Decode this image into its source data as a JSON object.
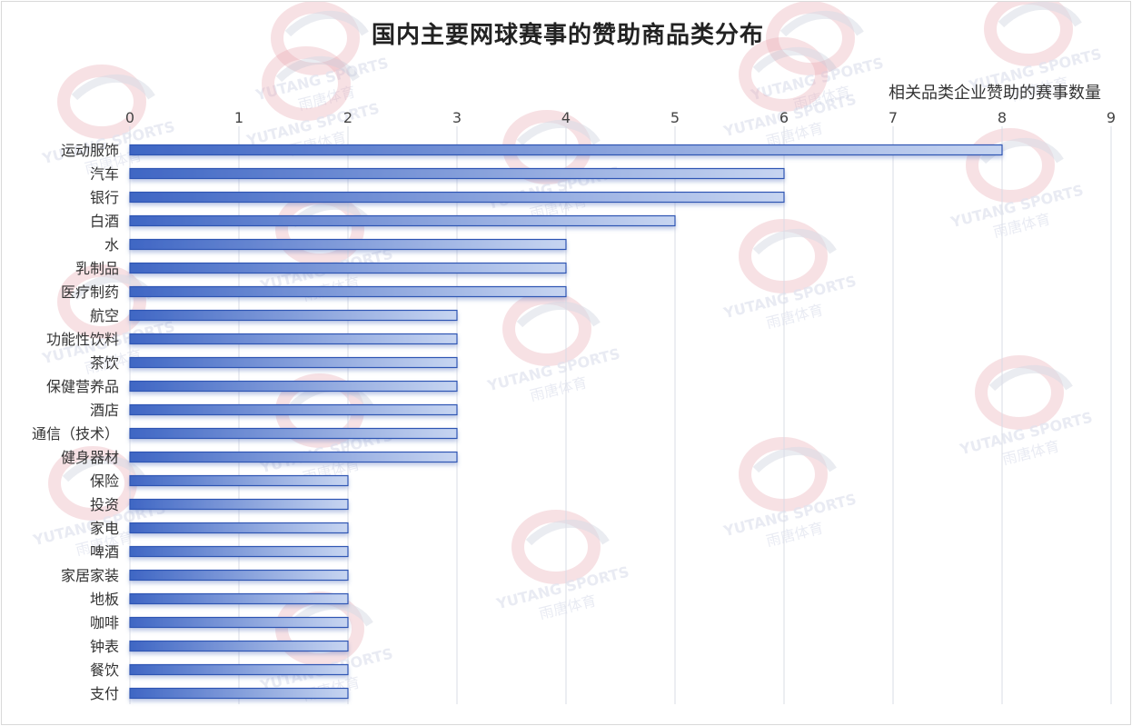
{
  "chart_data": {
    "type": "bar",
    "orientation": "horizontal",
    "title": "国内主要网球赛事的赞助商品类分布",
    "xlabel": "相关品类企业赞助的赛事数量",
    "ylabel": "",
    "xlim": [
      0,
      9
    ],
    "ticks": [
      "0",
      "1",
      "2",
      "3",
      "4",
      "5",
      "6",
      "7",
      "8",
      "9"
    ],
    "grid": true,
    "categories": [
      "运动服饰",
      "汽车",
      "银行",
      "白酒",
      "水",
      "乳制品",
      "医疗制药",
      "航空",
      "功能性饮料",
      "茶饮",
      "保健营养品",
      "酒店",
      "通信（技术）",
      "健身器材",
      "保险",
      "投资",
      "家电",
      "啤酒",
      "家居家装",
      "地板",
      "咖啡",
      "钟表",
      "餐饮",
      "支付"
    ],
    "values": [
      8,
      6,
      6,
      5,
      4,
      4,
      4,
      3,
      3,
      3,
      3,
      3,
      3,
      3,
      2,
      2,
      2,
      2,
      2,
      2,
      2,
      2,
      2,
      2
    ],
    "colors": {
      "bar_start": "#3f66c4",
      "bar_end": "#c7d5f1",
      "bar_border": "#2f55b3",
      "grid": "#d9dce6"
    }
  },
  "watermark": {
    "line1": "YUTANG SPORTS",
    "line2": "雨唐体育",
    "logo_color": "#e7a3ad"
  }
}
